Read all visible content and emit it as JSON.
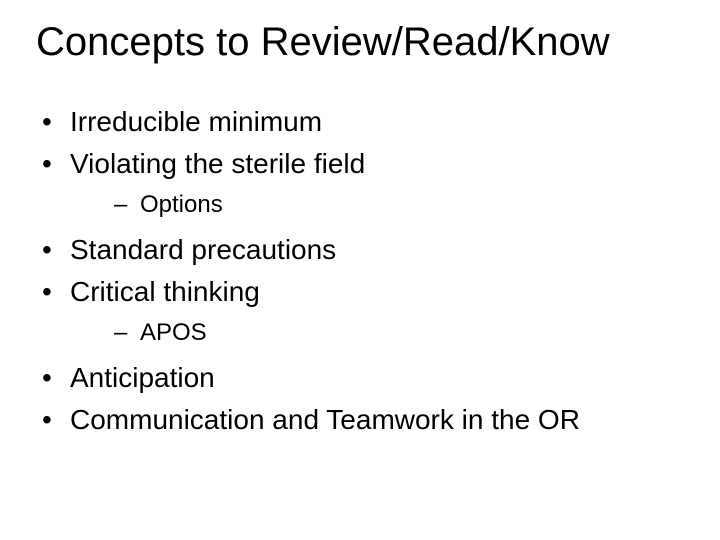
{
  "slide": {
    "title": "Concepts to Review/Read/Know",
    "background_color": "#ffffff",
    "text_color": "#000000",
    "title_fontsize": 40,
    "bullet_fontsize": 28,
    "sub_bullet_fontsize": 24,
    "font_family": "Arial",
    "bullets": {
      "b1": "Irreducible minimum",
      "b2": "Violating the sterile field",
      "b2_sub1": "Options",
      "b3": "Standard precautions",
      "b4": "Critical thinking",
      "b4_sub1": "APOS",
      "b5": "Anticipation",
      "b6": "Communication and Teamwork in the OR"
    }
  }
}
